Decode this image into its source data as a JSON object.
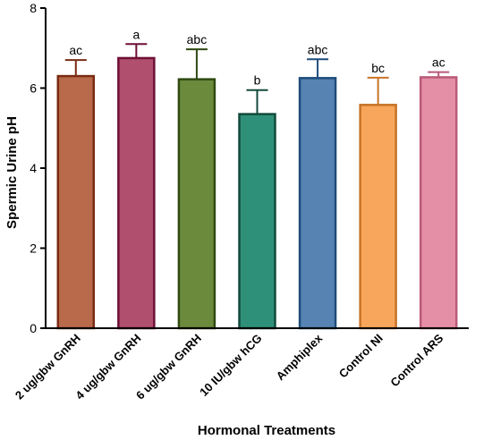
{
  "chart_data": {
    "type": "bar",
    "categories": [
      "2 ug/gbw GnRH",
      "4 ug/gbw GnRH",
      "6 ug/gbw GnRH",
      "10 IU/gbw hCG",
      "Amphiplex",
      "Control NI",
      "Control ARS"
    ],
    "values": [
      6.3,
      6.75,
      6.22,
      5.35,
      6.25,
      5.58,
      6.27
    ],
    "error": [
      0.4,
      0.35,
      0.75,
      0.6,
      0.47,
      0.68,
      0.13
    ],
    "significance": [
      "ac",
      "a",
      "abc",
      "b",
      "abc",
      "bc",
      "ac"
    ],
    "fill_colors": [
      "#b96a4a",
      "#b0506e",
      "#6c8a3c",
      "#2f9079",
      "#5683b2",
      "#f8a65b",
      "#e58fa6"
    ],
    "edge_colors": [
      "#7a2b12",
      "#6e0f37",
      "#2f4a12",
      "#124a3b",
      "#1f4d7a",
      "#c77428",
      "#b95a78"
    ],
    "xlabel": "Hormonal Treatments",
    "ylabel": "Spermic Urine pH",
    "ylim": [
      0,
      8
    ],
    "yticks": [
      0,
      2,
      4,
      6,
      8
    ],
    "grid": false
  }
}
